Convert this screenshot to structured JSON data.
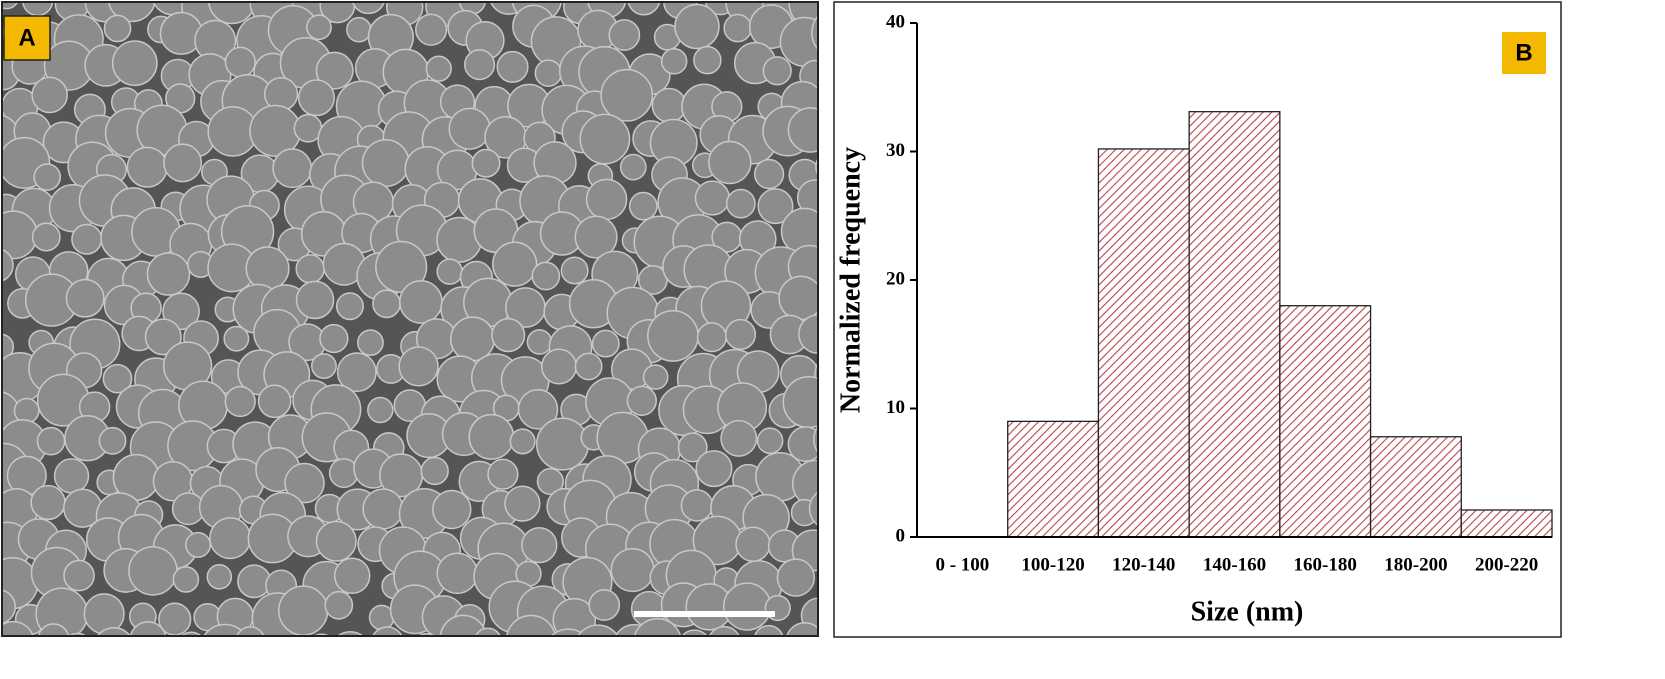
{
  "image_panel": {
    "label": "A"
  },
  "chart_data": {
    "type": "bar",
    "panel_label": "B",
    "x_label": "Size (nm)",
    "y_label": "Normalized frequency",
    "categories": [
      "0 - 100",
      "100-120",
      "120-140",
      "140-160",
      "160-180",
      "180-200",
      "200-220"
    ],
    "values": [
      0,
      9,
      30.2,
      33.1,
      18,
      7.8,
      2.1
    ],
    "color": "#b5474b",
    "ylim": [
      0,
      40
    ],
    "yticks": [
      0,
      10,
      20,
      30,
      40
    ]
  }
}
